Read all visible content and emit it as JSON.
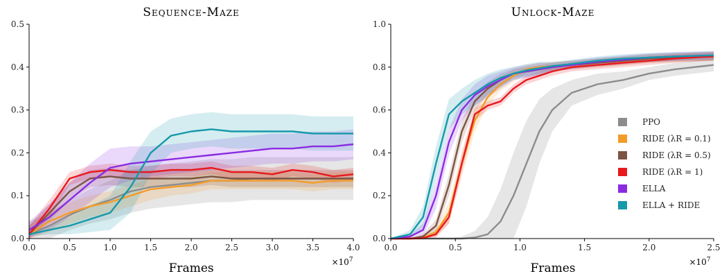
{
  "chart_data": [
    {
      "type": "line",
      "title": "Sequence-Maze",
      "xlabel": "Frames",
      "x_multiplier": "×10",
      "x_multiplier_exp": "7",
      "xlim": [
        0,
        4.0
      ],
      "ylim": [
        0,
        0.5
      ],
      "xticks": [
        "0.0",
        "0.5",
        "1.0",
        "1.5",
        "2.0",
        "2.5",
        "3.0",
        "3.5",
        "4.0"
      ],
      "yticks": [
        "0.0",
        "0.1",
        "0.2",
        "0.3",
        "0.4",
        "0.5"
      ],
      "x": [
        0,
        0.25,
        0.5,
        0.75,
        1.0,
        1.25,
        1.5,
        1.75,
        2.0,
        2.25,
        2.5,
        2.75,
        3.0,
        3.25,
        3.5,
        3.75,
        4.0
      ],
      "series": [
        {
          "name": "PPO",
          "color": "#8c8c8c",
          "values": [
            0.01,
            0.03,
            0.055,
            0.075,
            0.09,
            0.11,
            0.12,
            0.125,
            0.13,
            0.135,
            0.135,
            0.14,
            0.14,
            0.14,
            0.14,
            0.14,
            0.14
          ],
          "band": [
            0.03,
            0.03,
            0.035,
            0.04,
            0.045,
            0.05,
            0.05,
            0.05,
            0.05,
            0.05,
            0.05,
            0.05,
            0.05,
            0.05,
            0.05,
            0.05,
            0.05
          ]
        },
        {
          "name": "RIDE (λR = 0.1)",
          "color": "#f39c2a",
          "values": [
            0.01,
            0.04,
            0.06,
            0.075,
            0.085,
            0.1,
            0.115,
            0.12,
            0.125,
            0.135,
            0.135,
            0.135,
            0.135,
            0.135,
            0.13,
            0.135,
            0.135
          ],
          "band": [
            0.02,
            0.025,
            0.025,
            0.025,
            0.025,
            0.025,
            0.025,
            0.02,
            0.02,
            0.02,
            0.02,
            0.02,
            0.02,
            0.02,
            0.02,
            0.02,
            0.02
          ]
        },
        {
          "name": "RIDE (λR = 0.5)",
          "color": "#7d5442",
          "values": [
            0.01,
            0.06,
            0.11,
            0.14,
            0.145,
            0.14,
            0.14,
            0.14,
            0.14,
            0.145,
            0.14,
            0.14,
            0.14,
            0.14,
            0.14,
            0.14,
            0.14
          ],
          "band": [
            0.02,
            0.02,
            0.02,
            0.02,
            0.02,
            0.02,
            0.02,
            0.02,
            0.02,
            0.02,
            0.02,
            0.02,
            0.02,
            0.02,
            0.02,
            0.02,
            0.02
          ]
        },
        {
          "name": "RIDE (λR = 1)",
          "color": "#e8181c",
          "values": [
            0.01,
            0.07,
            0.14,
            0.155,
            0.16,
            0.155,
            0.155,
            0.16,
            0.16,
            0.165,
            0.155,
            0.155,
            0.15,
            0.16,
            0.155,
            0.145,
            0.15
          ],
          "band": [
            0.02,
            0.02,
            0.015,
            0.015,
            0.015,
            0.015,
            0.015,
            0.015,
            0.015,
            0.015,
            0.015,
            0.015,
            0.015,
            0.015,
            0.015,
            0.015,
            0.015
          ]
        },
        {
          "name": "ELLA",
          "color": "#8a2be2",
          "values": [
            0.02,
            0.05,
            0.09,
            0.13,
            0.165,
            0.175,
            0.18,
            0.185,
            0.19,
            0.195,
            0.2,
            0.205,
            0.21,
            0.21,
            0.215,
            0.215,
            0.22
          ],
          "band": [
            0.02,
            0.03,
            0.04,
            0.045,
            0.045,
            0.04,
            0.035,
            0.035,
            0.035,
            0.035,
            0.035,
            0.035,
            0.035,
            0.035,
            0.035,
            0.035,
            0.035
          ]
        },
        {
          "name": "ELLA + RIDE",
          "color": "#1499aa",
          "values": [
            0.01,
            0.02,
            0.03,
            0.045,
            0.06,
            0.12,
            0.2,
            0.24,
            0.25,
            0.255,
            0.25,
            0.25,
            0.25,
            0.25,
            0.245,
            0.245,
            0.245
          ],
          "band": [
            0.005,
            0.01,
            0.02,
            0.03,
            0.04,
            0.06,
            0.05,
            0.04,
            0.04,
            0.04,
            0.04,
            0.04,
            0.04,
            0.04,
            0.04,
            0.04,
            0.04
          ]
        }
      ]
    },
    {
      "type": "line",
      "title": "Unlock-Maze",
      "xlabel": "Frames",
      "x_multiplier": "×10",
      "x_multiplier_exp": "7",
      "xlim": [
        0,
        2.5
      ],
      "ylim": [
        0,
        1.0
      ],
      "xticks": [
        "0.0",
        "0.5",
        "1.0",
        "1.5",
        "2.0",
        "2.5"
      ],
      "yticks": [
        "0.0",
        "0.2",
        "0.4",
        "0.6",
        "0.8",
        "1.0"
      ],
      "legend_position": "right",
      "x": [
        0,
        0.15,
        0.25,
        0.35,
        0.45,
        0.55,
        0.65,
        0.75,
        0.85,
        0.95,
        1.05,
        1.15,
        1.25,
        1.4,
        1.6,
        1.8,
        2.0,
        2.2,
        2.5
      ],
      "series": [
        {
          "name": "PPO",
          "color": "#8c8c8c",
          "values": [
            0,
            0,
            0,
            0,
            0,
            0,
            0.005,
            0.02,
            0.08,
            0.2,
            0.35,
            0.5,
            0.6,
            0.68,
            0.72,
            0.74,
            0.77,
            0.79,
            0.81
          ],
          "band": [
            0,
            0,
            0,
            0,
            0,
            0.01,
            0.03,
            0.08,
            0.15,
            0.2,
            0.2,
            0.15,
            0.1,
            0.06,
            0.05,
            0.04,
            0.03,
            0.03,
            0.03
          ]
        },
        {
          "name": "RIDE (λR = 0.1)",
          "color": "#f39c2a",
          "values": [
            0,
            0,
            0.005,
            0.03,
            0.12,
            0.35,
            0.55,
            0.66,
            0.72,
            0.76,
            0.79,
            0.8,
            0.805,
            0.81,
            0.82,
            0.83,
            0.84,
            0.845,
            0.85
          ],
          "band": [
            0,
            0,
            0.005,
            0.02,
            0.05,
            0.06,
            0.05,
            0.04,
            0.03,
            0.03,
            0.02,
            0.02,
            0.02,
            0.02,
            0.02,
            0.02,
            0.02,
            0.02,
            0.02
          ]
        },
        {
          "name": "RIDE (λR = 0.5)",
          "color": "#7d5442",
          "values": [
            0,
            0,
            0.01,
            0.06,
            0.25,
            0.5,
            0.64,
            0.7,
            0.74,
            0.77,
            0.78,
            0.79,
            0.8,
            0.81,
            0.82,
            0.83,
            0.84,
            0.845,
            0.85
          ],
          "band": [
            0,
            0,
            0.01,
            0.03,
            0.05,
            0.05,
            0.04,
            0.03,
            0.03,
            0.02,
            0.02,
            0.02,
            0.02,
            0.02,
            0.02,
            0.02,
            0.02,
            0.02,
            0.02
          ]
        },
        {
          "name": "RIDE (λR = 1)",
          "color": "#e8181c",
          "values": [
            0,
            0,
            0.002,
            0.02,
            0.1,
            0.35,
            0.58,
            0.62,
            0.64,
            0.7,
            0.74,
            0.76,
            0.78,
            0.8,
            0.81,
            0.82,
            0.83,
            0.84,
            0.85
          ],
          "band": [
            0,
            0,
            0.005,
            0.015,
            0.03,
            0.04,
            0.03,
            0.02,
            0.02,
            0.02,
            0.02,
            0.02,
            0.02,
            0.02,
            0.02,
            0.02,
            0.02,
            0.02,
            0.02
          ]
        },
        {
          "name": "ELLA",
          "color": "#8a2be2",
          "values": [
            0,
            0.01,
            0.04,
            0.2,
            0.45,
            0.6,
            0.67,
            0.71,
            0.74,
            0.77,
            0.78,
            0.79,
            0.8,
            0.81,
            0.825,
            0.835,
            0.845,
            0.85,
            0.855
          ],
          "band": [
            0,
            0.01,
            0.03,
            0.06,
            0.06,
            0.05,
            0.05,
            0.05,
            0.04,
            0.03,
            0.03,
            0.03,
            0.02,
            0.02,
            0.02,
            0.02,
            0.02,
            0.02,
            0.02
          ]
        },
        {
          "name": "ELLA + RIDE",
          "color": "#1499aa",
          "values": [
            0,
            0.02,
            0.1,
            0.35,
            0.58,
            0.64,
            0.68,
            0.72,
            0.75,
            0.77,
            0.785,
            0.795,
            0.805,
            0.815,
            0.83,
            0.84,
            0.845,
            0.85,
            0.855
          ],
          "band": [
            0,
            0.02,
            0.05,
            0.08,
            0.07,
            0.06,
            0.06,
            0.05,
            0.04,
            0.03,
            0.03,
            0.03,
            0.02,
            0.02,
            0.02,
            0.02,
            0.02,
            0.02,
            0.02
          ]
        }
      ]
    }
  ]
}
